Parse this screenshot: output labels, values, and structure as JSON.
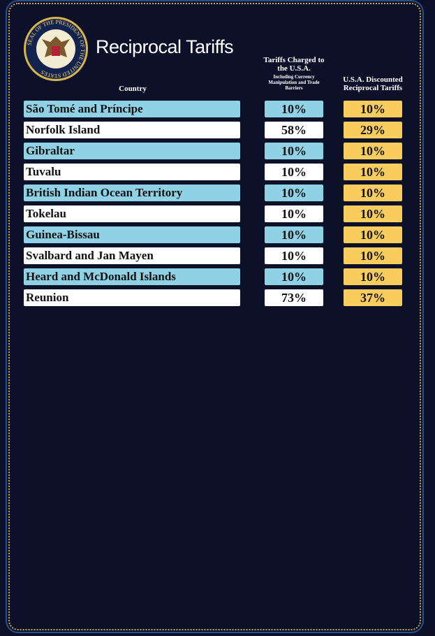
{
  "header": {
    "title": "Reciprocal Tariffs",
    "seal": "SEAL OF THE PRESIDENT OF THE UNITED STATES"
  },
  "table": {
    "columns": [
      "Country",
      "Tariffs Charged to the U.S.A.",
      "U.S.A. Discounted Reciprocal Tariffs"
    ],
    "column_note": "Including Currency Manipulation and Trade Barriers",
    "rows": [
      [
        "São Tomé and Príncipe",
        "10%",
        "10%"
      ],
      [
        "Norfolk Island",
        "58%",
        "29%"
      ],
      [
        "Gibraltar",
        "10%",
        "10%"
      ],
      [
        "Tuvalu",
        "10%",
        "10%"
      ],
      [
        "British Indian Ocean Territory",
        "10%",
        "10%"
      ],
      [
        "Tokelau",
        "10%",
        "10%"
      ],
      [
        "Guinea-Bissau",
        "10%",
        "10%"
      ],
      [
        "Svalbard and Jan Mayen",
        "10%",
        "10%"
      ],
      [
        "Heard and McDonald Islands",
        "10%",
        "10%"
      ],
      [
        "Reunion",
        "73%",
        "37%"
      ]
    ]
  }
}
